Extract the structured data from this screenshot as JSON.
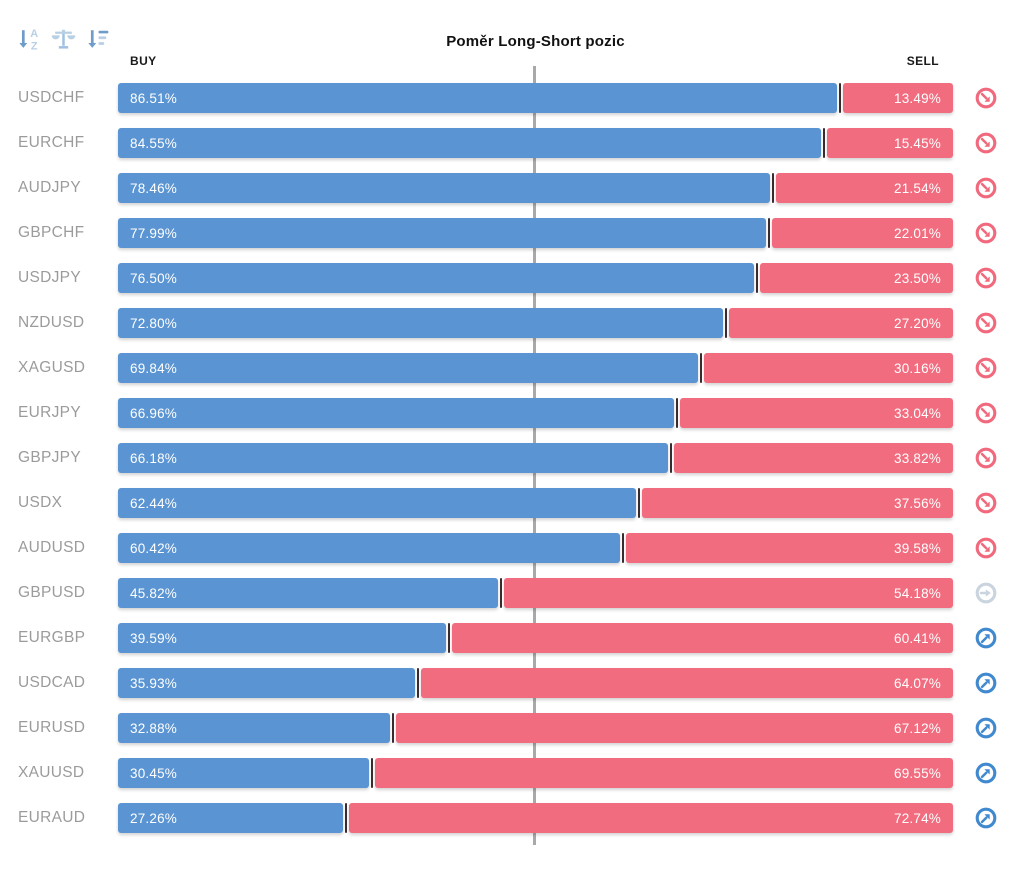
{
  "title": "Poměr Long-Short pozic",
  "columns": {
    "buy": "BUY",
    "sell": "SELL"
  },
  "toolbar": {
    "icons": [
      {
        "name": "sort-alpha-icon"
      },
      {
        "name": "balance-scales-icon"
      },
      {
        "name": "sort-amount-icon"
      }
    ]
  },
  "colors": {
    "buy": "#5b94d2",
    "sell": "#f26c7f",
    "divider": "#3a2b2e",
    "gridline": "#a9a9a9",
    "label": "#9b9b9b",
    "sig_down": "#f1697d",
    "sig_up": "#4189cf",
    "sig_neutral": "#c9d4df",
    "toolbar_dark": "#6f9dc9",
    "toolbar_light": "#b9cfe4"
  },
  "chart_data": {
    "type": "bar",
    "orientation": "horizontal",
    "stacked": true,
    "title": "Poměr Long-Short pozic",
    "xlabel": "",
    "ylabel": "",
    "xlim": [
      0,
      100
    ],
    "center_line_pct": 50,
    "legend_position": "top",
    "grid": false,
    "categories": [
      "USDCHF",
      "EURCHF",
      "AUDJPY",
      "GBPCHF",
      "USDJPY",
      "NZDUSD",
      "XAGUSD",
      "EURJPY",
      "GBPJPY",
      "USDX",
      "AUDUSD",
      "GBPUSD",
      "EURGBP",
      "USDCAD",
      "EURUSD",
      "XAUUSD",
      "EURAUD"
    ],
    "series": [
      {
        "name": "BUY",
        "color": "#5b94d2",
        "values": [
          86.51,
          84.55,
          78.46,
          77.99,
          76.5,
          72.8,
          69.84,
          66.96,
          66.18,
          62.44,
          60.42,
          45.82,
          39.59,
          35.93,
          32.88,
          30.45,
          27.26
        ]
      },
      {
        "name": "SELL",
        "color": "#f26c7f",
        "values": [
          13.49,
          15.45,
          21.54,
          22.01,
          23.5,
          27.2,
          30.16,
          33.04,
          33.82,
          37.56,
          39.58,
          54.18,
          60.41,
          64.07,
          67.12,
          69.55,
          72.74
        ]
      }
    ],
    "rows": [
      {
        "pair": "USDCHF",
        "buy": 86.51,
        "buy_label": "86.51%",
        "sell": 13.49,
        "sell_label": "13.49%",
        "signal": "down"
      },
      {
        "pair": "EURCHF",
        "buy": 84.55,
        "buy_label": "84.55%",
        "sell": 15.45,
        "sell_label": "15.45%",
        "signal": "down"
      },
      {
        "pair": "AUDJPY",
        "buy": 78.46,
        "buy_label": "78.46%",
        "sell": 21.54,
        "sell_label": "21.54%",
        "signal": "down"
      },
      {
        "pair": "GBPCHF",
        "buy": 77.99,
        "buy_label": "77.99%",
        "sell": 22.01,
        "sell_label": "22.01%",
        "signal": "down"
      },
      {
        "pair": "USDJPY",
        "buy": 76.5,
        "buy_label": "76.50%",
        "sell": 23.5,
        "sell_label": "23.50%",
        "signal": "down"
      },
      {
        "pair": "NZDUSD",
        "buy": 72.8,
        "buy_label": "72.80%",
        "sell": 27.2,
        "sell_label": "27.20%",
        "signal": "down"
      },
      {
        "pair": "XAGUSD",
        "buy": 69.84,
        "buy_label": "69.84%",
        "sell": 30.16,
        "sell_label": "30.16%",
        "signal": "down"
      },
      {
        "pair": "EURJPY",
        "buy": 66.96,
        "buy_label": "66.96%",
        "sell": 33.04,
        "sell_label": "33.04%",
        "signal": "down"
      },
      {
        "pair": "GBPJPY",
        "buy": 66.18,
        "buy_label": "66.18%",
        "sell": 33.82,
        "sell_label": "33.82%",
        "signal": "down"
      },
      {
        "pair": "USDX",
        "buy": 62.44,
        "buy_label": "62.44%",
        "sell": 37.56,
        "sell_label": "37.56%",
        "signal": "down"
      },
      {
        "pair": "AUDUSD",
        "buy": 60.42,
        "buy_label": "60.42%",
        "sell": 39.58,
        "sell_label": "39.58%",
        "signal": "down"
      },
      {
        "pair": "GBPUSD",
        "buy": 45.82,
        "buy_label": "45.82%",
        "sell": 54.18,
        "sell_label": "54.18%",
        "signal": "neutral"
      },
      {
        "pair": "EURGBP",
        "buy": 39.59,
        "buy_label": "39.59%",
        "sell": 60.41,
        "sell_label": "60.41%",
        "signal": "up"
      },
      {
        "pair": "USDCAD",
        "buy": 35.93,
        "buy_label": "35.93%",
        "sell": 64.07,
        "sell_label": "64.07%",
        "signal": "up"
      },
      {
        "pair": "EURUSD",
        "buy": 32.88,
        "buy_label": "32.88%",
        "sell": 67.12,
        "sell_label": "67.12%",
        "signal": "up"
      },
      {
        "pair": "XAUUSD",
        "buy": 30.45,
        "buy_label": "30.45%",
        "sell": 69.55,
        "sell_label": "69.55%",
        "signal": "up"
      },
      {
        "pair": "EURAUD",
        "buy": 27.26,
        "buy_label": "27.26%",
        "sell": 72.74,
        "sell_label": "72.74%",
        "signal": "up"
      }
    ]
  }
}
